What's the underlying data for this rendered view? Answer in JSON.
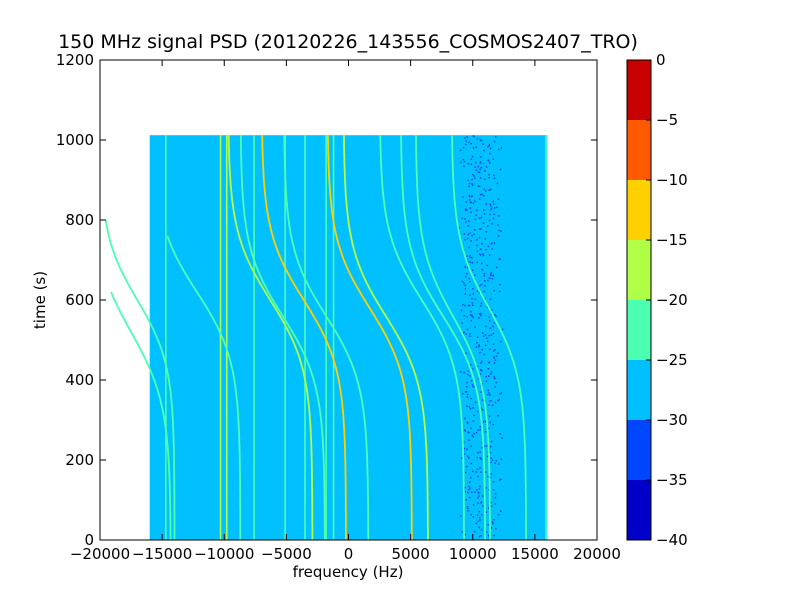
{
  "chart_data": {
    "type": "heatmap",
    "title": "150 MHz signal PSD (20120226_143556_COSMOS2407_TRO)",
    "xlabel": "frequency (Hz)",
    "ylabel": "time (s)",
    "xlim": [
      -20000,
      20000
    ],
    "ylim": [
      0,
      1200
    ],
    "xticks": [
      -20000,
      -15000,
      -10000,
      -5000,
      0,
      5000,
      10000,
      15000,
      20000
    ],
    "xtick_labels": [
      "−20000",
      "−15000",
      "−10000",
      "−5000",
      "0",
      "5000",
      "10000",
      "15000",
      "20000"
    ],
    "yticks": [
      0,
      200,
      400,
      600,
      800,
      1000,
      1200
    ],
    "ytick_labels": [
      "0",
      "200",
      "400",
      "600",
      "800",
      "1000",
      "1200"
    ],
    "data_extent": {
      "x": [
        -16000,
        16000
      ],
      "y": [
        0,
        1012
      ]
    },
    "background_level": -27,
    "grid": false,
    "colorbar": {
      "levels": [
        0,
        -5,
        -10,
        -15,
        -20,
        -25,
        -30,
        -35,
        -40
      ],
      "level_labels": [
        "0",
        "−5",
        "−10",
        "−15",
        "−20",
        "−25",
        "−30",
        "−35",
        "−40"
      ],
      "band_colors": [
        "#0000c8",
        "#0046ff",
        "#00c0ff",
        "#4cffb0",
        "#b0ff46",
        "#ffd000",
        "#ff5a00",
        "#c80000"
      ],
      "band_ranges": [
        [
          -40,
          -35
        ],
        [
          -35,
          -30
        ],
        [
          -30,
          -25
        ],
        [
          -25,
          -20
        ],
        [
          -20,
          -15
        ],
        [
          -15,
          -10
        ],
        [
          -10,
          -5
        ],
        [
          -5,
          0
        ]
      ]
    },
    "vertical_lines": [
      {
        "x": -14700,
        "level": -22
      },
      {
        "x": -10300,
        "level": -18
      },
      {
        "x": -9800,
        "level": -18
      },
      {
        "x": -7600,
        "level": -22
      },
      {
        "x": -5100,
        "level": -22
      },
      {
        "x": -3500,
        "level": -22
      },
      {
        "x": -1800,
        "level": -22
      },
      {
        "x": -1200,
        "level": -22
      },
      {
        "x": 15900,
        "level": -22
      }
    ],
    "curves": [
      {
        "a": -17000,
        "b": 3000,
        "t0": 600,
        "tau": 160,
        "t_start": 0,
        "t_end": 800,
        "level": -20
      },
      {
        "a": -17500,
        "b": 3200,
        "t0": 520,
        "tau": 180,
        "t_start": 0,
        "t_end": 620,
        "level": -22
      },
      {
        "a": -12200,
        "b": 3500,
        "t0": 620,
        "tau": 170,
        "t_start": 0,
        "t_end": 760,
        "level": -22
      },
      {
        "a": -6300,
        "b": 3400,
        "t0": 600,
        "tau": 170,
        "t_start": 0,
        "t_end": 1012,
        "level": -18
      },
      {
        "a": -5300,
        "b": 3400,
        "t0": 560,
        "tau": 170,
        "t_start": 0,
        "t_end": 1012,
        "level": -20
      },
      {
        "a": -3600,
        "b": 3400,
        "t0": 600,
        "tau": 170,
        "t_start": 0,
        "t_end": 1012,
        "level": -14
      },
      {
        "a": -1800,
        "b": 3400,
        "t0": 560,
        "tau": 170,
        "t_start": 0,
        "t_end": 1012,
        "level": -20
      },
      {
        "a": 1700,
        "b": 3400,
        "t0": 580,
        "tau": 170,
        "t_start": 0,
        "t_end": 1012,
        "level": -10
      },
      {
        "a": 3000,
        "b": 3400,
        "t0": 560,
        "tau": 170,
        "t_start": 0,
        "t_end": 1012,
        "level": -18
      },
      {
        "a": 5900,
        "b": 3400,
        "t0": 600,
        "tau": 170,
        "t_start": 0,
        "t_end": 1012,
        "level": -20
      },
      {
        "a": 7600,
        "b": 3400,
        "t0": 560,
        "tau": 170,
        "t_start": 0,
        "t_end": 1012,
        "level": -22
      },
      {
        "a": 8400,
        "b": 3000,
        "t0": 560,
        "tau": 170,
        "t_start": 0,
        "t_end": 1012,
        "level": -22
      },
      {
        "a": 11300,
        "b": 3000,
        "t0": 580,
        "tau": 170,
        "t_start": 0,
        "t_end": 1012,
        "level": -22
      }
    ],
    "noise_patches": [
      {
        "x": [
          8800,
          12400
        ],
        "y": [
          0,
          1012
        ],
        "level": -32
      }
    ]
  }
}
